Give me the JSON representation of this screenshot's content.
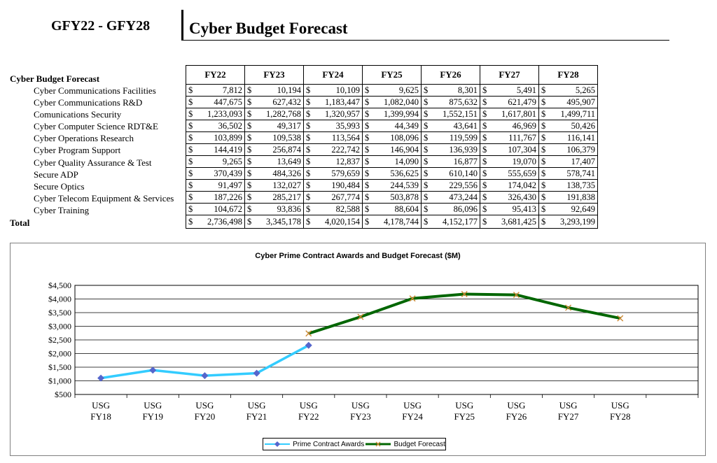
{
  "header": {
    "range": "GFY22 - GFY28",
    "title": "Cyber Budget Forecast"
  },
  "table": {
    "section_label": "Cyber Budget Forecast",
    "currency": "$",
    "columns": [
      "FY22",
      "FY23",
      "FY24",
      "FY25",
      "FY26",
      "FY27",
      "FY28"
    ],
    "rows": [
      {
        "label": "Cyber Communications Facilities",
        "values": [
          "7,812",
          "10,194",
          "10,109",
          "9,625",
          "8,301",
          "5,491",
          "5,265"
        ]
      },
      {
        "label": "Cyber Communications R&D",
        "values": [
          "447,675",
          "627,432",
          "1,183,447",
          "1,082,040",
          "875,632",
          "621,479",
          "495,907"
        ]
      },
      {
        "label": "Comunications Security",
        "values": [
          "1,233,093",
          "1,282,768",
          "1,320,957",
          "1,399,994",
          "1,552,151",
          "1,617,801",
          "1,499,711"
        ]
      },
      {
        "label": "Cyber Computer Science RDT&E",
        "values": [
          "36,502",
          "49,317",
          "35,993",
          "44,349",
          "43,641",
          "46,969",
          "50,426"
        ]
      },
      {
        "label": "Cyber Operations Research",
        "values": [
          "103,899",
          "109,538",
          "113,564",
          "108,096",
          "119,599",
          "111,767",
          "116,141"
        ]
      },
      {
        "label": "Cyber Program Support",
        "values": [
          "144,419",
          "256,874",
          "222,742",
          "146,904",
          "136,939",
          "107,304",
          "106,379"
        ]
      },
      {
        "label": "Cyber Quality Assurance & Test",
        "values": [
          "9,265",
          "13,649",
          "12,837",
          "14,090",
          "16,877",
          "19,070",
          "17,407"
        ]
      },
      {
        "label": "Secure ADP",
        "values": [
          "370,439",
          "484,326",
          "579,659",
          "536,625",
          "610,140",
          "555,659",
          "578,741"
        ]
      },
      {
        "label": "Secure Optics",
        "values": [
          "91,497",
          "132,027",
          "190,484",
          "244,539",
          "229,556",
          "174,042",
          "138,735"
        ]
      },
      {
        "label": "Cyber Telecom Equipment & Services",
        "values": [
          "187,226",
          "285,217",
          "267,774",
          "503,878",
          "473,244",
          "326,430",
          "191,838"
        ]
      },
      {
        "label": "Cyber Training",
        "values": [
          "104,672",
          "93,836",
          "82,588",
          "88,604",
          "86,096",
          "95,413",
          "92,649"
        ]
      }
    ],
    "total": {
      "label": "Total",
      "values": [
        "2,736,498",
        "3,345,178",
        "4,020,154",
        "4,178,744",
        "4,152,177",
        "3,681,425",
        "3,293,199"
      ]
    }
  },
  "chart_data": {
    "type": "line",
    "title": "Cyber Prime Contract Awards and Budget Forecast ($M)",
    "categories": [
      "USG FY18",
      "USG FY19",
      "USG FY20",
      "USG FY21",
      "USG FY22",
      "USG FY23",
      "USG FY24",
      "USG FY25",
      "USG FY26",
      "USG FY27",
      "USG FY28"
    ],
    "ylim": [
      500,
      4500
    ],
    "yticks": [
      "$500",
      "$1,000",
      "$1,500",
      "$2,000",
      "$2,500",
      "$3,000",
      "$3,500",
      "$4,000",
      "$4,500"
    ],
    "grid": true,
    "legend_position": "bottom",
    "series": [
      {
        "name": "Prime Contract Awards",
        "color": "#33ccff",
        "marker_color": "#5566cc",
        "marker": "diamond",
        "values": [
          1100,
          1390,
          1190,
          1280,
          2300,
          null,
          null,
          null,
          null,
          null,
          null
        ]
      },
      {
        "name": "Budget Forecast",
        "color": "#006600",
        "marker_color": "#cc8833",
        "marker": "x",
        "values": [
          null,
          null,
          null,
          null,
          2736,
          3345,
          4020,
          4179,
          4152,
          3681,
          3293
        ]
      }
    ]
  }
}
